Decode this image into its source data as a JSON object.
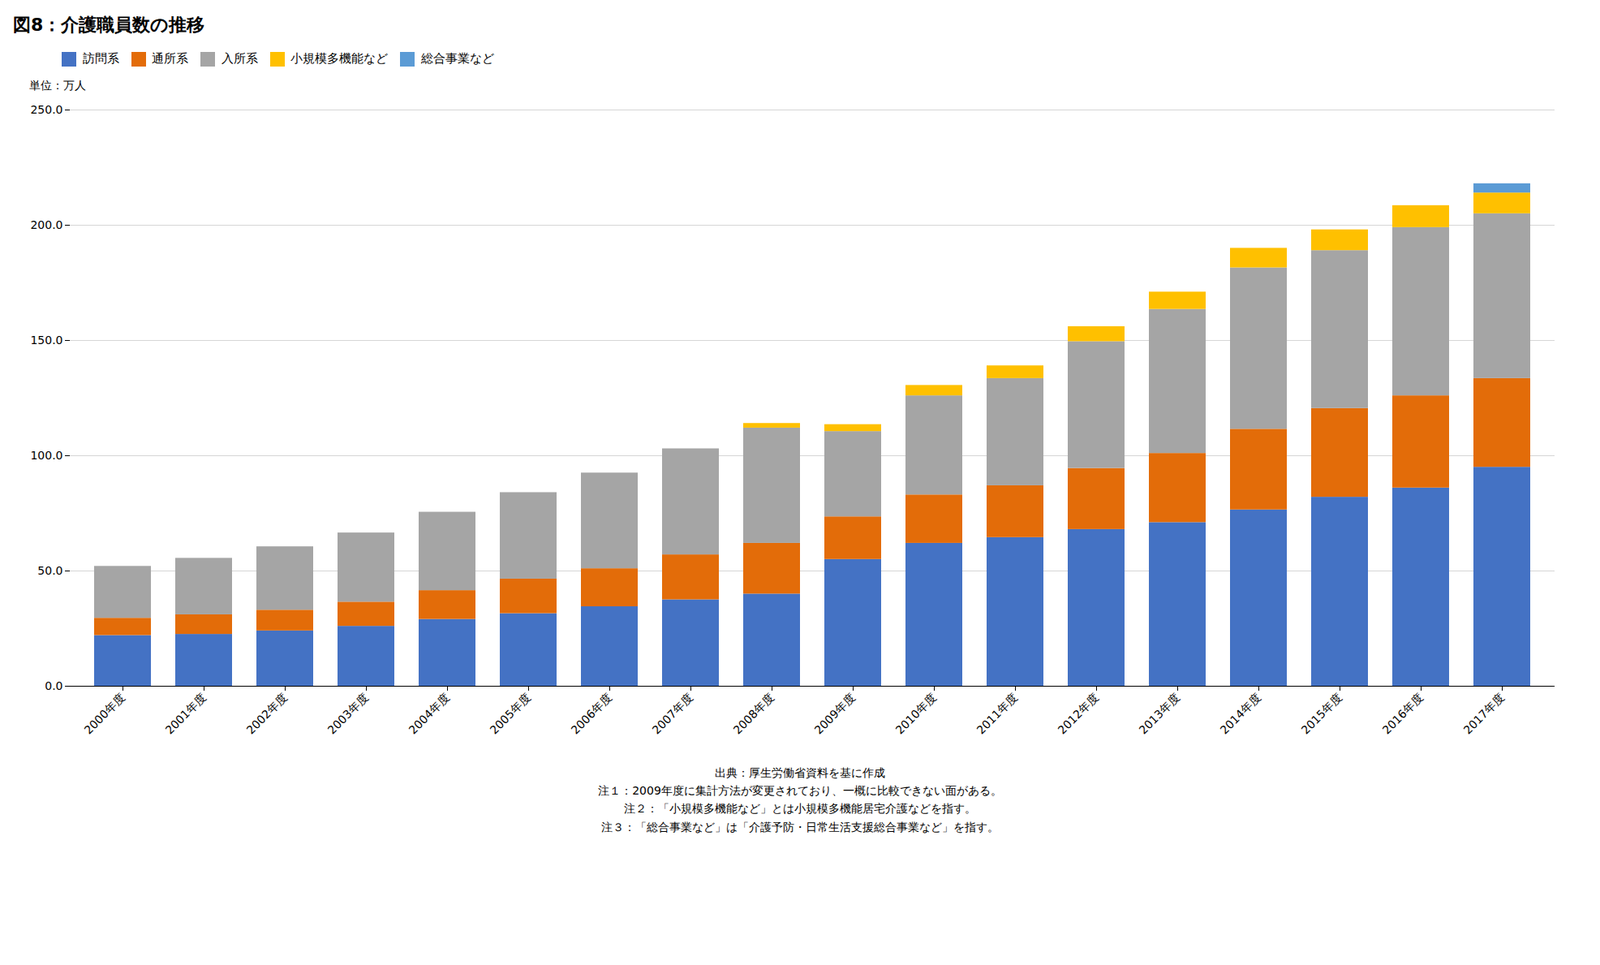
{
  "chart_data": {
    "type": "bar",
    "stacked": true,
    "title": "図8：介護職員数の推移",
    "ylabel": "単位：万人",
    "categories": [
      "2000年度",
      "2001年度",
      "2002年度",
      "2003年度",
      "2004年度",
      "2005年度",
      "2006年度",
      "2007年度",
      "2008年度",
      "2009年度",
      "2010年度",
      "2011年度",
      "2012年度",
      "2013年度",
      "2014年度",
      "2015年度",
      "2016年度",
      "2017年度"
    ],
    "series": [
      {
        "name": "訪問系",
        "color": "#4472C4",
        "values": [
          22.0,
          22.5,
          24.0,
          26.0,
          29.0,
          31.5,
          34.5,
          37.5,
          40.0,
          55.0,
          62.0,
          64.5,
          68.0,
          71.0,
          76.5,
          82.0,
          86.0,
          95.0
        ]
      },
      {
        "name": "通所系",
        "color": "#E36C09",
        "values": [
          7.5,
          8.5,
          9.0,
          10.5,
          12.5,
          15.0,
          16.5,
          19.5,
          22.0,
          18.5,
          21.0,
          22.5,
          26.5,
          30.0,
          35.0,
          38.5,
          40.0,
          38.5
        ]
      },
      {
        "name": "入所系",
        "color": "#A5A5A5",
        "values": [
          22.5,
          24.5,
          27.5,
          30.0,
          34.0,
          37.5,
          41.5,
          46.0,
          50.0,
          37.0,
          43.0,
          46.5,
          55.0,
          62.5,
          70.0,
          68.5,
          73.0,
          71.5
        ]
      },
      {
        "name": "小規模多機能など",
        "color": "#FFC000",
        "values": [
          0.0,
          0.0,
          0.0,
          0.0,
          0.0,
          0.0,
          0.0,
          0.0,
          2.0,
          3.0,
          4.5,
          5.5,
          6.5,
          7.5,
          8.5,
          9.0,
          9.5,
          9.0
        ]
      },
      {
        "name": "総合事業など",
        "color": "#5B9BD5",
        "values": [
          0.0,
          0.0,
          0.0,
          0.0,
          0.0,
          0.0,
          0.0,
          0.0,
          0.0,
          0.0,
          0.0,
          0.0,
          0.0,
          0.0,
          0.0,
          0.0,
          0.0,
          4.0
        ]
      }
    ],
    "ylim": [
      0,
      250
    ],
    "yticks": [
      {
        "value": 0,
        "label": "0.0"
      },
      {
        "value": 50,
        "label": "50.0"
      },
      {
        "value": 100,
        "label": "100.0"
      },
      {
        "value": 150,
        "label": "150.0"
      },
      {
        "value": 200,
        "label": "200.0"
      },
      {
        "value": 250,
        "label": "250.0"
      }
    ],
    "grid": true,
    "legend": "upper left",
    "annotations": [
      "出典：厚生労働省資料を基に作成",
      "注１：2009年度に集計方法が変更されており、一概に比較できない面がある。",
      "注２：「小規模多機能など」とは小規模多機能居宅介護などを指す。",
      "注３：「総合事業など」は「介護予防・日常生活支援総合事業など」を指す。"
    ]
  }
}
